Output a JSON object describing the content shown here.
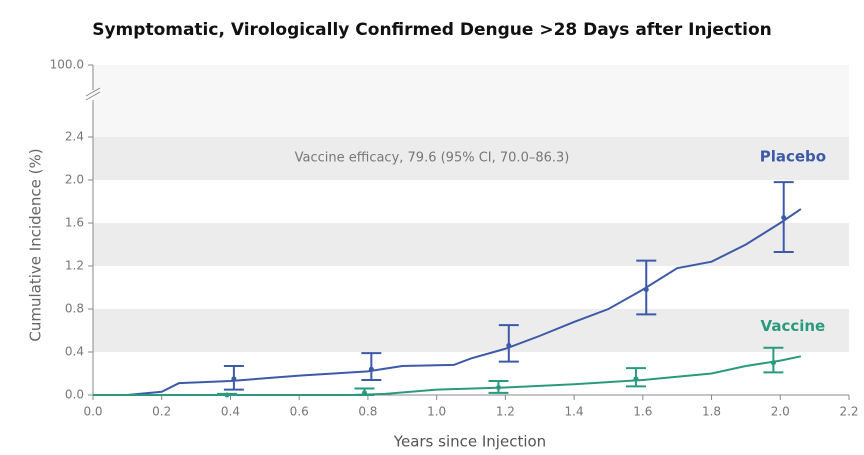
{
  "chart_data": {
    "type": "line",
    "title": "Symptomatic, Virologically Confirmed Dengue >28 Days after Injection",
    "xlabel": "Years since Injection",
    "ylabel": "Cumulative Incidence (%)",
    "annotation": "Vaccine efficacy, 79.6 (95% CI, 70.0–86.3)",
    "xlim": [
      0,
      2.2
    ],
    "xticks": [
      {
        "value": 0,
        "label": "0.0"
      },
      0.2,
      0.4,
      0.6,
      0.8,
      {
        "value": 1,
        "label": "1.0"
      },
      1.2,
      1.4,
      1.6,
      1.8,
      {
        "value": 2,
        "label": "2.0"
      },
      2.2
    ],
    "ylim": [
      0,
      100
    ],
    "axis_break": [
      2.4,
      100
    ],
    "yticks": [
      {
        "value": 0,
        "label": "0.0"
      },
      0.4,
      0.8,
      1.2,
      1.6,
      {
        "value": 2,
        "label": "2.0"
      },
      2.4,
      {
        "value": 100,
        "label": "100.0"
      }
    ],
    "banded_grid": true,
    "series": [
      {
        "name": "Placebo",
        "color": "#3d5aa8",
        "x": [
          0,
          0.1,
          0.2,
          0.25,
          0.4,
          0.6,
          0.8,
          0.9,
          1.05,
          1.1,
          1.2,
          1.3,
          1.4,
          1.5,
          1.6,
          1.7,
          1.8,
          1.9,
          2.0,
          2.06
        ],
        "values": [
          0,
          0,
          0.03,
          0.11,
          0.13,
          0.18,
          0.22,
          0.27,
          0.28,
          0.34,
          0.43,
          0.55,
          0.68,
          0.8,
          0.98,
          1.18,
          1.24,
          1.4,
          1.6,
          1.73
        ],
        "error_bars": [
          {
            "x": 0.41,
            "value": 0.15,
            "low": 0.05,
            "high": 0.27
          },
          {
            "x": 0.81,
            "value": 0.24,
            "low": 0.14,
            "high": 0.39
          },
          {
            "x": 1.21,
            "value": 0.46,
            "low": 0.31,
            "high": 0.65
          },
          {
            "x": 1.61,
            "value": 0.98,
            "low": 0.75,
            "high": 1.25
          },
          {
            "x": 2.01,
            "value": 1.65,
            "low": 1.33,
            "high": 1.98
          }
        ]
      },
      {
        "name": "Vaccine",
        "color": "#2a9a7e",
        "x": [
          0,
          0.3,
          0.75,
          0.85,
          1.0,
          1.2,
          1.4,
          1.6,
          1.8,
          1.9,
          2.0,
          2.06
        ],
        "values": [
          0,
          0,
          0,
          0.01,
          0.05,
          0.07,
          0.1,
          0.14,
          0.2,
          0.27,
          0.32,
          0.36
        ],
        "error_bars": [
          {
            "x": 0.39,
            "value": 0,
            "low": 0,
            "high": 0.01
          },
          {
            "x": 0.79,
            "value": 0.02,
            "low": 0,
            "high": 0.06
          },
          {
            "x": 1.18,
            "value": 0.07,
            "low": 0.02,
            "high": 0.13
          },
          {
            "x": 1.58,
            "value": 0.15,
            "low": 0.08,
            "high": 0.25
          },
          {
            "x": 1.98,
            "value": 0.3,
            "low": 0.21,
            "high": 0.44
          }
        ]
      }
    ]
  }
}
